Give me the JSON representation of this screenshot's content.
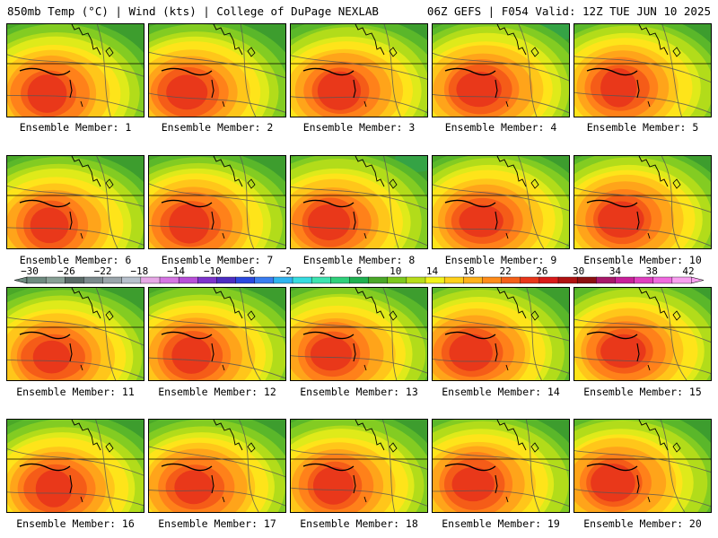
{
  "header": {
    "left": "850mb Temp (°C) | Wind (kts) | College of DuPage NEXLAB",
    "right": "06Z GEFS | F054 Valid: 12Z TUE JUN 10 2025"
  },
  "members": [
    {
      "label": "Ensemble Member: 1"
    },
    {
      "label": "Ensemble Member: 2"
    },
    {
      "label": "Ensemble Member: 3"
    },
    {
      "label": "Ensemble Member: 4"
    },
    {
      "label": "Ensemble Member: 5"
    },
    {
      "label": "Ensemble Member: 6"
    },
    {
      "label": "Ensemble Member: 7"
    },
    {
      "label": "Ensemble Member: 8"
    },
    {
      "label": "Ensemble Member: 9"
    },
    {
      "label": "Ensemble Member: 10"
    },
    {
      "label": "Ensemble Member: 11"
    },
    {
      "label": "Ensemble Member: 12"
    },
    {
      "label": "Ensemble Member: 13"
    },
    {
      "label": "Ensemble Member: 14"
    },
    {
      "label": "Ensemble Member: 15"
    },
    {
      "label": "Ensemble Member: 16"
    },
    {
      "label": "Ensemble Member: 17"
    },
    {
      "label": "Ensemble Member: 18"
    },
    {
      "label": "Ensemble Member: 19"
    },
    {
      "label": "Ensemble Member: 20"
    }
  ],
  "colorbar": {
    "ticks": [
      "-30",
      "-26",
      "-22",
      "-18",
      "-14",
      "-10",
      "-6",
      "-2",
      "2",
      "6",
      "10",
      "14",
      "18",
      "22",
      "26",
      "30",
      "34",
      "38",
      "42"
    ],
    "colors": [
      "#6e8b7f",
      "#87a095",
      "#596a67",
      "#7b8a8d",
      "#9aa5ab",
      "#b7c0cc",
      "#e6a8e6",
      "#d575e3",
      "#b84fd8",
      "#7d33cc",
      "#4c2dc2",
      "#2a48e0",
      "#3a7df0",
      "#2fb4f0",
      "#36dce0",
      "#3de4b0",
      "#2fd07a",
      "#1fb050",
      "#4aa828",
      "#7ec81e",
      "#b8dd1a",
      "#f2f21c",
      "#ffd11a",
      "#ffb21a",
      "#ff8c1a",
      "#f46018",
      "#e8361a",
      "#d91a1a",
      "#b01212",
      "#8c1010",
      "#a8186a",
      "#c8209a",
      "#e040c0",
      "#f06ae0",
      "#f8a0f0"
    ]
  }
}
